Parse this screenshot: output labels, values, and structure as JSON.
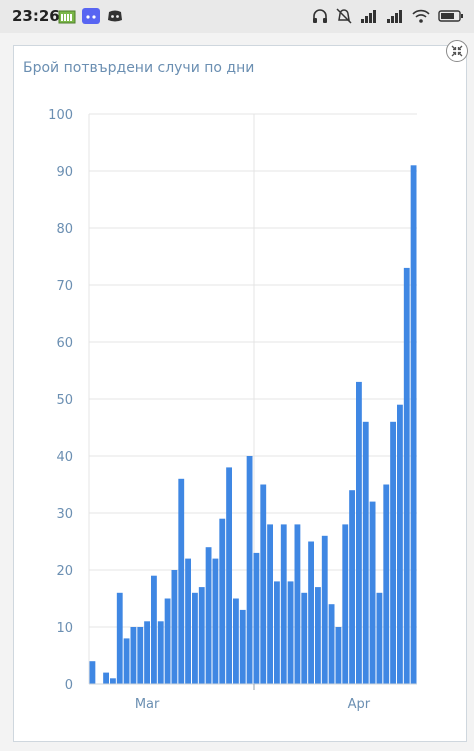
{
  "status_bar": {
    "time": "23:26",
    "left_icons": [
      "sim-icon",
      "discord-icon",
      "discord-icon"
    ],
    "right_icons": [
      "headphones-icon",
      "mute-icon",
      "signal-icon",
      "signal-icon",
      "wifi-icon",
      "battery-icon"
    ]
  },
  "card": {
    "title": "Брой потвърдени случи по дни"
  },
  "colors": {
    "bar": "#3f87e3",
    "grid": "#e4e4e4",
    "axis_label": "#6b8fb2"
  },
  "chart_data": {
    "type": "bar",
    "title": "Брой потвърдени случи по дни",
    "xlabel": "",
    "ylabel": "",
    "ylim": [
      0,
      100
    ],
    "y_ticks": [
      0,
      10,
      20,
      30,
      40,
      50,
      60,
      70,
      80,
      90,
      100
    ],
    "x_tick_labels": [
      {
        "label": "Mar",
        "index": 8
      },
      {
        "label": "Apr",
        "index": 39
      }
    ],
    "grid": "horizontal",
    "values": [
      4,
      0,
      2,
      1,
      16,
      8,
      10,
      10,
      11,
      19,
      11,
      15,
      20,
      36,
      22,
      16,
      17,
      24,
      22,
      29,
      38,
      15,
      13,
      40,
      23,
      35,
      28,
      18,
      28,
      18,
      28,
      16,
      25,
      17,
      26,
      14,
      10,
      28,
      34,
      53,
      46,
      32,
      16,
      35,
      46,
      49,
      73,
      91
    ]
  }
}
